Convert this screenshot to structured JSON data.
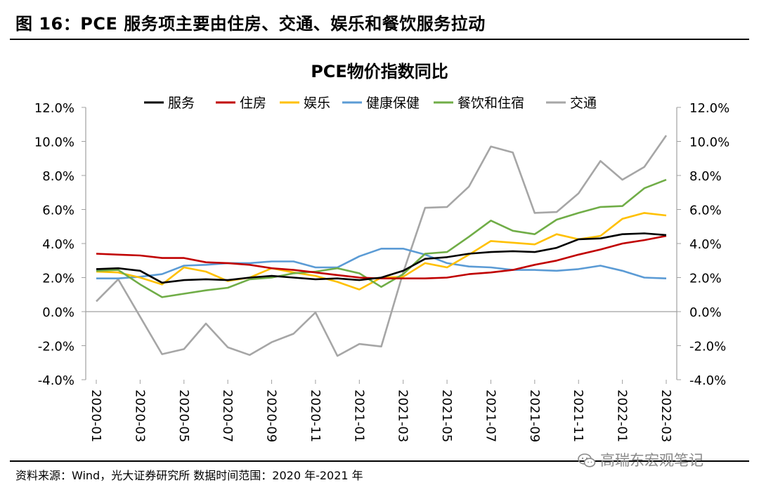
{
  "figure_title": "图 16：PCE 服务项主要由住房、交通、娱乐和餐饮服务拉动",
  "source_note": "资料来源：Wind，光大证券研究所  数据时间范围：2020 年-2021 年",
  "watermark": "高瑞东宏观笔记",
  "chart_data": {
    "type": "line",
    "title": "PCE物价指数同比",
    "xlabel": "",
    "ylabel": "",
    "ylim": [
      -4,
      12
    ],
    "y_ticks": [
      "12.0%",
      "10.0%",
      "8.0%",
      "6.0%",
      "4.0%",
      "2.0%",
      "0.0%",
      "-2.0%",
      "-4.0%"
    ],
    "y_tick_values": [
      12,
      10,
      8,
      6,
      4,
      2,
      0,
      -2,
      -4
    ],
    "x": [
      "2020-01",
      "2020-02",
      "2020-03",
      "2020-04",
      "2020-05",
      "2020-06",
      "2020-07",
      "2020-08",
      "2020-09",
      "2020-10",
      "2020-11",
      "2020-12",
      "2021-01",
      "2021-02",
      "2021-03",
      "2021-04",
      "2021-05",
      "2021-06",
      "2021-07",
      "2021-08",
      "2021-09",
      "2021-10",
      "2021-11",
      "2021-12",
      "2022-01",
      "2022-02",
      "2022-03"
    ],
    "x_tick_labels": [
      "2020-01",
      "2020-03",
      "2020-05",
      "2020-07",
      "2020-09",
      "2020-11",
      "2021-01",
      "2021-03",
      "2021-05",
      "2021-07",
      "2021-09",
      "2021-11",
      "2022-01",
      "2022-03"
    ],
    "legend_position": "top",
    "grid": false,
    "series": [
      {
        "name": "服务",
        "color": "#000000",
        "values": [
          2.5,
          2.55,
          2.4,
          1.7,
          1.85,
          1.9,
          1.85,
          2.0,
          2.1,
          2.0,
          1.9,
          1.95,
          1.85,
          2.0,
          2.4,
          3.1,
          3.2,
          3.4,
          3.5,
          3.55,
          3.5,
          3.75,
          4.25,
          4.3,
          4.55,
          4.6,
          4.5
        ]
      },
      {
        "name": "住房",
        "color": "#c00000",
        "values": [
          3.4,
          3.35,
          3.3,
          3.15,
          3.15,
          2.9,
          2.85,
          2.75,
          2.55,
          2.45,
          2.3,
          2.15,
          2.0,
          1.95,
          1.95,
          1.95,
          2.0,
          2.2,
          2.3,
          2.45,
          2.75,
          3.0,
          3.35,
          3.65,
          4.0,
          4.2,
          4.45
        ]
      },
      {
        "name": "娱乐",
        "color": "#ffc000",
        "values": [
          2.35,
          2.3,
          2.0,
          1.6,
          2.6,
          2.35,
          1.8,
          2.0,
          2.55,
          2.3,
          2.1,
          1.75,
          1.3,
          2.0,
          2.05,
          2.85,
          2.6,
          3.35,
          4.15,
          4.05,
          3.95,
          4.55,
          4.25,
          4.45,
          5.45,
          5.8,
          5.65
        ]
      },
      {
        "name": "健康保健",
        "color": "#5b9bd5",
        "values": [
          1.95,
          1.95,
          2.05,
          2.2,
          2.7,
          2.75,
          2.85,
          2.85,
          2.95,
          2.95,
          2.6,
          2.6,
          3.25,
          3.7,
          3.7,
          3.35,
          2.85,
          2.65,
          2.6,
          2.45,
          2.45,
          2.4,
          2.5,
          2.7,
          2.4,
          2.0,
          1.95
        ]
      },
      {
        "name": "餐饮和住宿",
        "color": "#70ad47",
        "values": [
          2.4,
          2.45,
          1.6,
          0.85,
          1.05,
          1.25,
          1.4,
          1.9,
          2.0,
          2.25,
          2.35,
          2.55,
          2.25,
          1.45,
          2.2,
          3.4,
          3.5,
          4.4,
          5.35,
          4.75,
          4.55,
          5.4,
          5.8,
          6.15,
          6.2,
          7.25,
          7.75
        ]
      },
      {
        "name": "交通",
        "color": "#a6a6a6",
        "values": [
          0.6,
          1.9,
          -0.3,
          -2.5,
          -2.2,
          -0.7,
          -2.1,
          -2.55,
          -1.8,
          -1.3,
          -0.05,
          -2.6,
          -1.9,
          -2.05,
          2.3,
          6.1,
          6.15,
          7.35,
          9.7,
          9.35,
          5.8,
          5.85,
          6.95,
          8.85,
          7.75,
          8.5,
          10.35
        ]
      }
    ]
  }
}
